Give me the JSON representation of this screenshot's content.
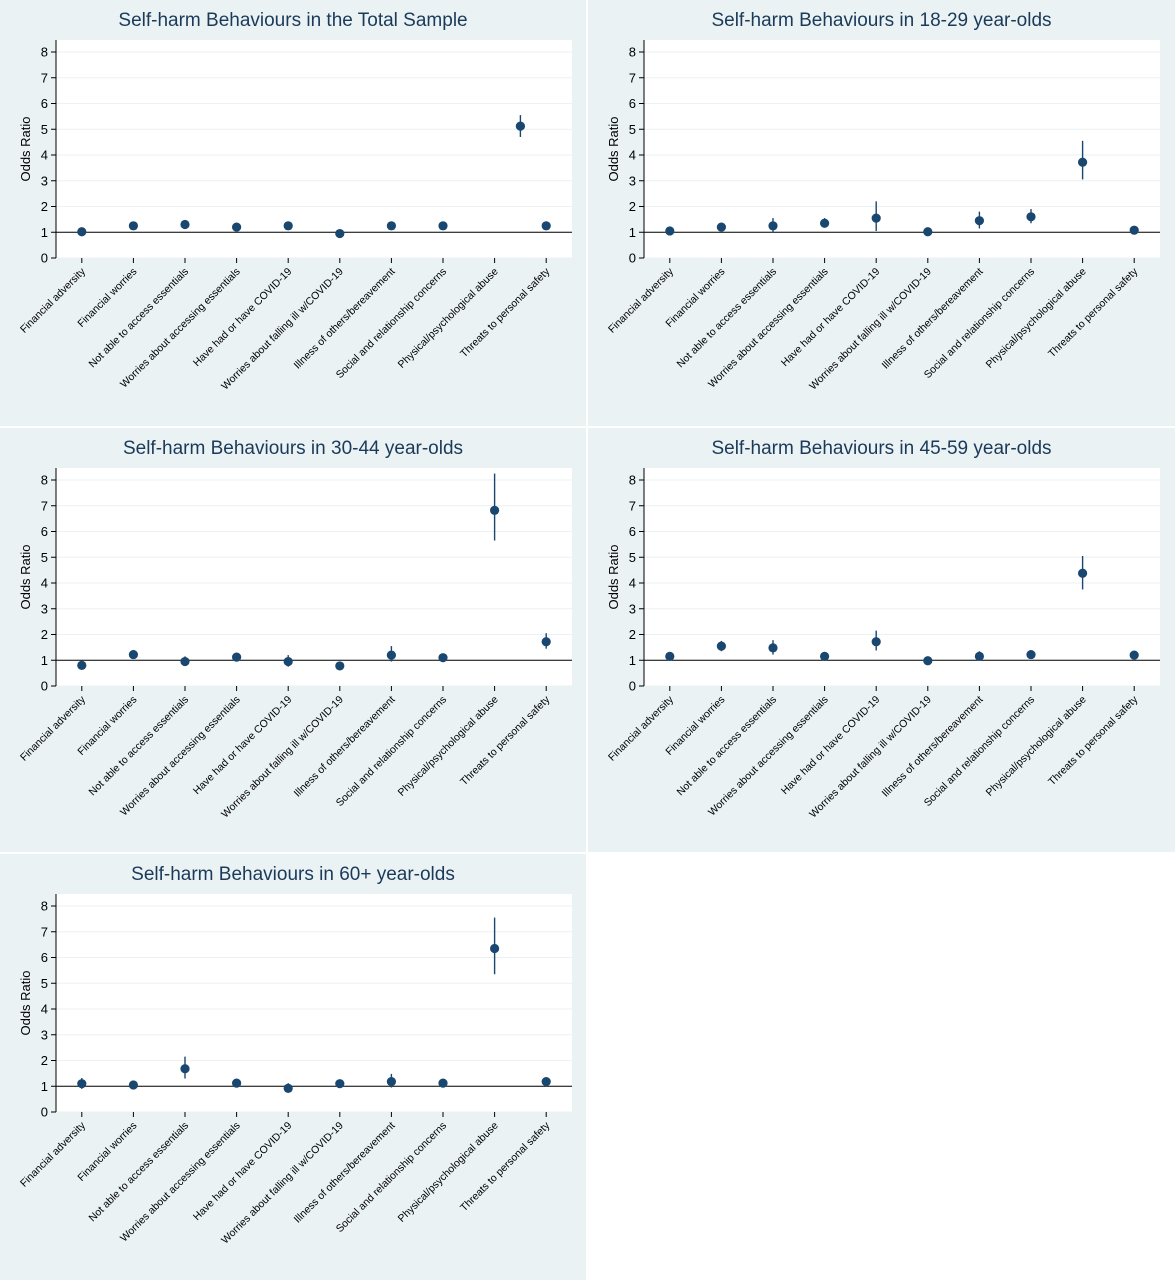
{
  "colors": {
    "panel_bg": "#eaf2f3",
    "plot_bg": "#ffffff",
    "marker": "#1a476f",
    "grid": "#eaf2f3",
    "title": "#1b3a5a"
  },
  "chart_data": [
    {
      "type": "scatter",
      "title": "Self-harm Behaviours in the Total Sample",
      "ylabel": "Odds Ratio",
      "xlabel": "",
      "categories": [
        "Financial adversity",
        "Financial worries",
        "Not able to access essentials",
        "Worries about accessing essentials",
        "Have had or have COVID-19",
        "Worries about falling ill w/COVID-19",
        "Illness of others/bereavement",
        "Social and relationship concerns",
        "Physical/psychological abuse",
        "Threats to personal safety"
      ],
      "y_ticks": [
        "0",
        "1",
        "2",
        "3",
        "4",
        "5",
        "6",
        "7",
        "8"
      ],
      "ylim": [
        0,
        8
      ],
      "reference_line": 1,
      "grid": true,
      "series": [
        {
          "values": [
            1.02,
            1.25,
            1.3,
            1.2,
            1.25,
            0.95,
            1.25,
            1.25,
            null,
            1.25
          ],
          "ci_low": [
            0.95,
            1.15,
            1.2,
            1.1,
            1.15,
            0.88,
            1.15,
            1.15,
            null,
            1.15
          ],
          "ci_high": [
            1.1,
            1.35,
            1.4,
            1.3,
            1.35,
            1.02,
            1.35,
            1.35,
            null,
            1.35
          ],
          "x_positions": [
            0,
            1,
            2,
            3,
            4,
            5,
            6,
            7,
            8.95,
            9
          ]
        }
      ],
      "extra_points": [
        {
          "x": 8.5,
          "y": 5.12,
          "ci_low": 4.7,
          "ci_high": 5.55
        }
      ]
    },
    {
      "type": "scatter",
      "title": "Self-harm Behaviours in 18-29 year-olds",
      "ylabel": "Odds Ratio",
      "xlabel": "",
      "categories": [
        "Financial adversity",
        "Financial worries",
        "Not able to access essentials",
        "Worries about accessing essentials",
        "Have had or have COVID-19",
        "Worries about falling ill w/COVID-19",
        "Illness of others/bereavement",
        "Social and relationship concerns",
        "Physical/psychological abuse",
        "Threats to personal safety"
      ],
      "y_ticks": [
        "0",
        "1",
        "2",
        "3",
        "4",
        "5",
        "6",
        "7",
        "8"
      ],
      "ylim": [
        0,
        8
      ],
      "reference_line": 1,
      "grid": true,
      "series": [
        {
          "values": [
            1.05,
            1.2,
            1.25,
            1.35,
            1.55,
            1.02,
            1.45,
            1.6,
            3.72,
            1.08
          ],
          "ci_low": [
            0.9,
            1.05,
            1.0,
            1.2,
            1.05,
            0.95,
            1.15,
            1.35,
            3.05,
            0.98
          ],
          "ci_high": [
            1.2,
            1.35,
            1.55,
            1.55,
            2.2,
            1.1,
            1.8,
            1.9,
            4.55,
            1.18
          ]
        }
      ]
    },
    {
      "type": "scatter",
      "title": "Self-harm Behaviours in 30-44 year-olds",
      "ylabel": "Odds Ratio",
      "xlabel": "",
      "categories": [
        "Financial adversity",
        "Financial worries",
        "Not able to access essentials",
        "Worries about accessing essentials",
        "Have had or have COVID-19",
        "Worries about falling ill w/COVID-19",
        "Illness of others/bereavement",
        "Social and relationship concerns",
        "Physical/psychological abuse",
        "Threats to personal safety"
      ],
      "y_ticks": [
        "0",
        "1",
        "2",
        "3",
        "4",
        "5",
        "6",
        "7",
        "8"
      ],
      "ylim": [
        0,
        8
      ],
      "reference_line": 1,
      "grid": true,
      "series": [
        {
          "values": [
            0.8,
            1.22,
            0.95,
            1.12,
            0.95,
            0.78,
            1.2,
            1.1,
            6.82,
            1.72
          ],
          "ci_low": [
            0.72,
            1.05,
            0.8,
            1.0,
            0.75,
            0.7,
            0.95,
            0.98,
            5.65,
            1.45
          ],
          "ci_high": [
            0.9,
            1.4,
            1.15,
            1.25,
            1.2,
            0.88,
            1.55,
            1.22,
            8.25,
            2.05
          ]
        }
      ]
    },
    {
      "type": "scatter",
      "title": "Self-harm Behaviours in 45-59 year-olds",
      "ylabel": "Odds Ratio",
      "xlabel": "",
      "categories": [
        "Financial adversity",
        "Financial worries",
        "Not able to access essentials",
        "Worries about accessing essentials",
        "Have had or have COVID-19",
        "Worries about falling ill w/COVID-19",
        "Illness of others/bereavement",
        "Social and relationship concerns",
        "Physical/psychological abuse",
        "Threats to personal safety"
      ],
      "y_ticks": [
        "0",
        "1",
        "2",
        "3",
        "4",
        "5",
        "6",
        "7",
        "8"
      ],
      "ylim": [
        0,
        8
      ],
      "reference_line": 1,
      "grid": true,
      "series": [
        {
          "values": [
            1.15,
            1.55,
            1.48,
            1.15,
            1.72,
            0.98,
            1.15,
            1.22,
            4.38,
            1.2
          ],
          "ci_low": [
            1.02,
            1.35,
            1.22,
            1.05,
            1.38,
            0.9,
            1.0,
            1.1,
            3.75,
            1.08
          ],
          "ci_high": [
            1.3,
            1.75,
            1.78,
            1.28,
            2.15,
            1.08,
            1.35,
            1.35,
            5.05,
            1.32
          ]
        }
      ]
    },
    {
      "type": "scatter",
      "title": "Self-harm Behaviours in 60+ year-olds",
      "ylabel": "Odds Ratio",
      "xlabel": "",
      "categories": [
        "Financial adversity",
        "Financial worries",
        "Not able to access essentials",
        "Worries about accessing essentials",
        "Have had or have COVID-19",
        "Worries about falling ill w/COVID-19",
        "Illness of others/bereavement",
        "Social and relationship concerns",
        "Physical/psychological abuse",
        "Threats to personal safety"
      ],
      "y_ticks": [
        "0",
        "1",
        "2",
        "3",
        "4",
        "5",
        "6",
        "7",
        "8"
      ],
      "ylim": [
        0,
        8
      ],
      "reference_line": 1,
      "grid": true,
      "series": [
        {
          "values": [
            1.1,
            1.05,
            1.68,
            1.12,
            0.92,
            1.1,
            1.18,
            1.12,
            6.35,
            1.18
          ],
          "ci_low": [
            0.9,
            0.95,
            1.3,
            1.0,
            0.75,
            0.95,
            0.95,
            0.98,
            5.35,
            1.05
          ],
          "ci_high": [
            1.32,
            1.15,
            2.15,
            1.25,
            1.12,
            1.25,
            1.48,
            1.28,
            7.55,
            1.32
          ]
        }
      ]
    }
  ]
}
